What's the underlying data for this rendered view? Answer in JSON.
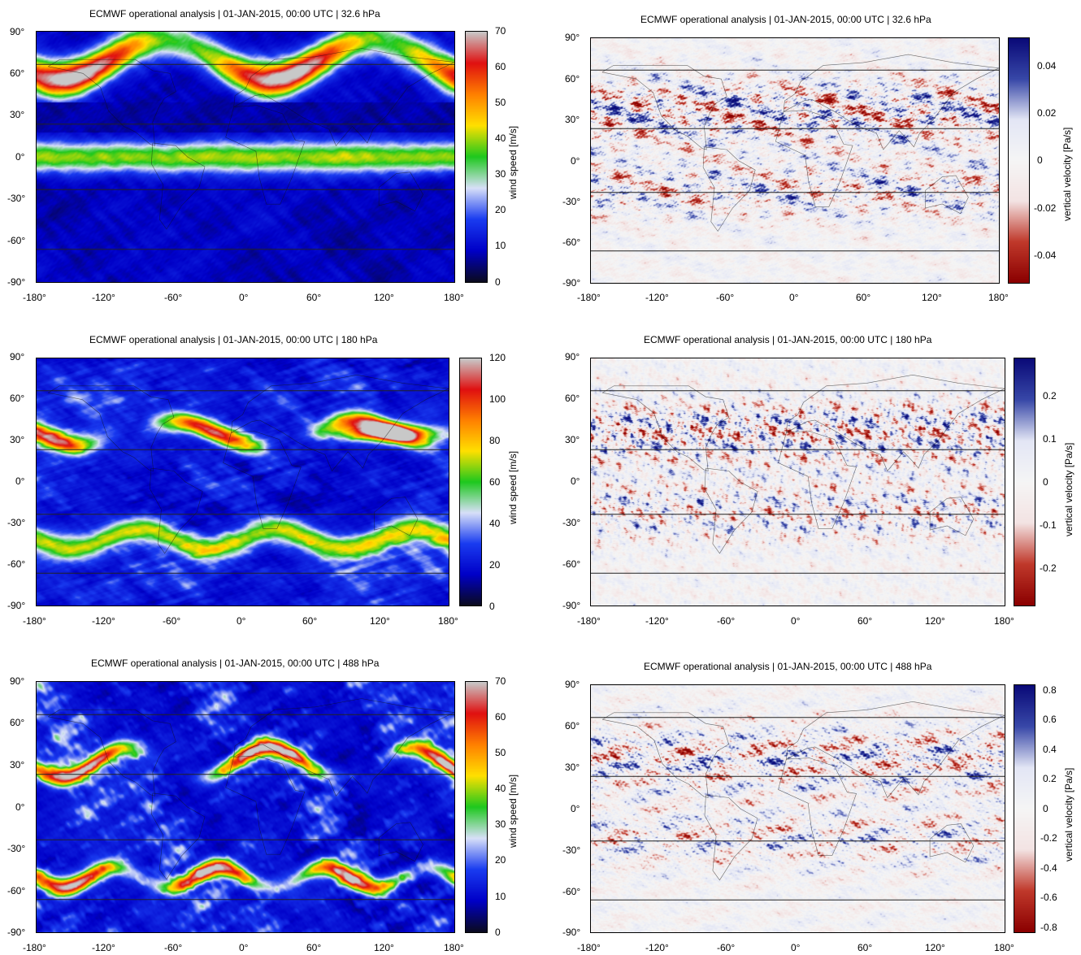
{
  "colors": {
    "wind_scale": [
      "#0a0a20",
      "#0000c8",
      "#1a3cf0",
      "#d8e0f8",
      "#1ec81e",
      "#ffe000",
      "#ff8000",
      "#e01010",
      "#c8c8c8"
    ],
    "omega_scale": [
      "#8b0000",
      "#c0392b",
      "#f3e3e3",
      "#f5f5f5",
      "#e3e6f5",
      "#3848a8",
      "#0a0a78"
    ]
  },
  "panels": [
    {
      "title": "ECMWF operational analysis | 01-JAN-2015, 00:00 UTC | 32.6 hPa",
      "field": "wind speed",
      "lat_ticks": [
        "90°",
        "60°",
        "30°",
        "0°",
        "-30°",
        "-60°",
        "-90°"
      ],
      "lon_ticks": [
        "-180°",
        "-120°",
        "-60°",
        "0°",
        "60°",
        "120°",
        "180°"
      ],
      "colorbar": {
        "label": "wind speed [m/s]",
        "ticks": [
          "70",
          "60",
          "50",
          "40",
          "30",
          "20",
          "10",
          "0"
        ],
        "range": [
          0,
          70
        ]
      }
    },
    {
      "title": "ECMWF operational analysis | 01-JAN-2015, 00:00 UTC | 32.6 hPa",
      "field": "vertical velocity",
      "lat_ticks": [
        "90°",
        "60°",
        "30°",
        "0°",
        "-30°",
        "-60°",
        "-90°"
      ],
      "lon_ticks": [
        "-180°",
        "-120°",
        "-60°",
        "0°",
        "60°",
        "120°",
        "180°"
      ],
      "colorbar": {
        "label": "vertical velocity [Pa/s]",
        "ticks": [
          "0.04",
          "0.02",
          "0",
          "-0.02",
          "-0.04"
        ],
        "range": [
          -0.05,
          0.05
        ]
      }
    },
    {
      "title": "ECMWF operational analysis | 01-JAN-2015, 00:00 UTC | 180 hPa",
      "field": "wind speed",
      "lat_ticks": [
        "90°",
        "60°",
        "30°",
        "0°",
        "-30°",
        "-60°",
        "-90°"
      ],
      "lon_ticks": [
        "-180°",
        "-120°",
        "-60°",
        "0°",
        "60°",
        "120°",
        "180°"
      ],
      "colorbar": {
        "label": "wind speed [m/s]",
        "ticks": [
          "120",
          "100",
          "80",
          "60",
          "40",
          "20",
          "0"
        ],
        "range": [
          0,
          120
        ]
      }
    },
    {
      "title": "ECMWF operational analysis | 01-JAN-2015, 00:00 UTC | 180 hPa",
      "field": "vertical velocity",
      "lat_ticks": [
        "90°",
        "60°",
        "30°",
        "0°",
        "-30°",
        "-60°",
        "-90°"
      ],
      "lon_ticks": [
        "-180°",
        "-120°",
        "-60°",
        "0°",
        "60°",
        "120°",
        "180°"
      ],
      "colorbar": {
        "label": "vertical velocity [Pa/s]",
        "ticks": [
          "0.2",
          "0.1",
          "0",
          "-0.1",
          "-0.2"
        ],
        "range": [
          -0.29,
          0.29
        ]
      }
    },
    {
      "title": "ECMWF operational analysis | 01-JAN-2015, 00:00 UTC | 488 hPa",
      "field": "wind speed",
      "lat_ticks": [
        "90°",
        "60°",
        "30°",
        "0°",
        "-30°",
        "-60°",
        "-90°"
      ],
      "lon_ticks": [
        "-180°",
        "-120°",
        "-60°",
        "0°",
        "60°",
        "120°",
        "180°"
      ],
      "colorbar": {
        "label": "wind speed [m/s]",
        "ticks": [
          "70",
          "60",
          "50",
          "40",
          "30",
          "20",
          "10",
          "0"
        ],
        "range": [
          0,
          70
        ]
      }
    },
    {
      "title": "ECMWF operational analysis | 01-JAN-2015, 00:00 UTC | 488 hPa",
      "field": "vertical velocity",
      "lat_ticks": [
        "90°",
        "60°",
        "30°",
        "0°",
        "-30°",
        "-60°",
        "-90°"
      ],
      "lon_ticks": [
        "-180°",
        "-120°",
        "-60°",
        "0°",
        "60°",
        "120°",
        "180°"
      ],
      "colorbar": {
        "label": "vertical velocity [Pa/s]",
        "ticks": [
          "0.8",
          "0.6",
          "0.4",
          "0.2",
          "0",
          "-0.2",
          "-0.4",
          "-0.6",
          "-0.8"
        ],
        "range": [
          -0.85,
          0.85
        ]
      }
    }
  ]
}
